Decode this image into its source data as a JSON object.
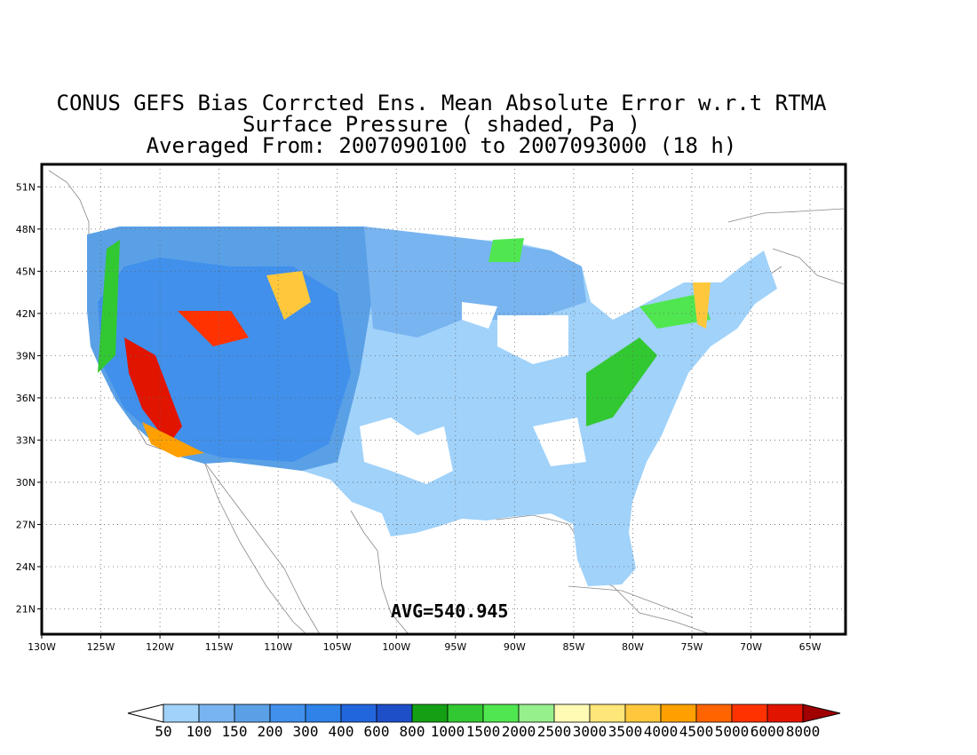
{
  "title": {
    "line1": "CONUS GEFS Bias Corrcted Ens. Mean Absolute Error w.r.t RTMA",
    "line2": "Surface Pressure ( shaded, Pa )",
    "line3": "Averaged From: 2007090100 to 2007093000 (18 h)"
  },
  "annotation": {
    "avg": "AVG=540.945"
  },
  "axes": {
    "lon_ticks": [
      "130W",
      "125W",
      "120W",
      "115W",
      "110W",
      "105W",
      "100W",
      "95W",
      "90W",
      "85W",
      "80W",
      "75W",
      "70W",
      "65W"
    ],
    "lat_ticks": [
      "51N",
      "48N",
      "45N",
      "42N",
      "39N",
      "36N",
      "33N",
      "30N",
      "27N",
      "24N",
      "21N"
    ],
    "lon_range": [
      -130,
      -62
    ],
    "lat_range": [
      19.2,
      52.6
    ],
    "grid": "dotted"
  },
  "colorbar": {
    "labels": [
      "50",
      "100",
      "150",
      "200",
      "300",
      "400",
      "600",
      "800",
      "1000",
      "1500",
      "2000",
      "2500",
      "3000",
      "3500",
      "4000",
      "4500",
      "5000",
      "6000",
      "8000"
    ],
    "colors": [
      "#a0d2fa",
      "#78b4f0",
      "#5aa0e6",
      "#4090ec",
      "#2e82e8",
      "#2266de",
      "#1e4ec8",
      "#14a014",
      "#32c832",
      "#50e650",
      "#96f08c",
      "#fffab4",
      "#ffe678",
      "#ffc83c",
      "#ffa000",
      "#ff6400",
      "#ff3200",
      "#e11400",
      "#c00000"
    ],
    "under_color": "#ffffff",
    "over_color": "#a00000"
  }
}
